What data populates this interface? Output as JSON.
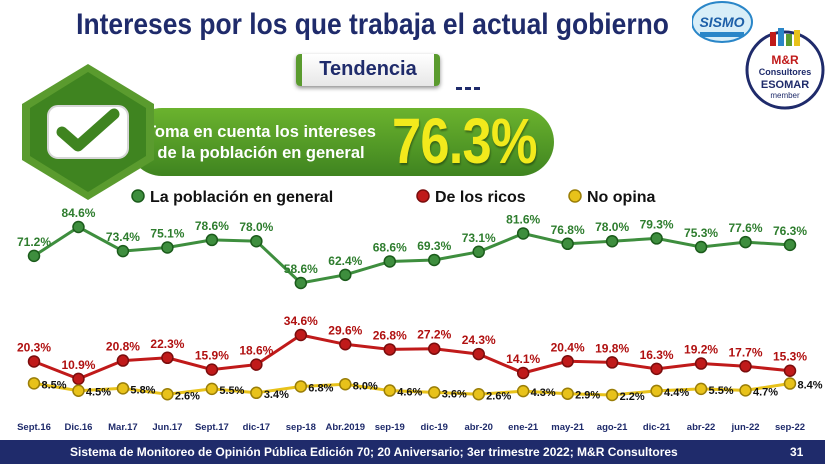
{
  "header": {
    "title": "Intereses por los que trabaja el actual gobierno",
    "subtitle": "Tendencia"
  },
  "highlight": {
    "line1": "Toma en cuenta los intereses",
    "line2": "de la población en general",
    "value": "76.3%"
  },
  "logos": {
    "sismo": "SISMO",
    "company_line1": "M&R",
    "company_line2": "Consultores",
    "esomar": "ESOMAR",
    "member": "member"
  },
  "footer": {
    "text": "Sistema de Monitoreo de Opinión Pública Edición 70; 20 Aniversario; 3er trimestre 2022; M&R Consultores",
    "page": "31"
  },
  "colors": {
    "green": "#3e8e3e",
    "red": "#c01a1a",
    "yellow": "#e8c21a",
    "navy": "#1f2b6b"
  },
  "chart_data": {
    "type": "line",
    "title": "",
    "categories": [
      "Sept.16",
      "Dic.16",
      "Mar.17",
      "Jun.17",
      "Sept.17",
      "dic-17",
      "sep-18",
      "Abr.2019",
      "sep-19",
      "dic-19",
      "abr-20",
      "ene-21",
      "may-21",
      "ago-21",
      "dic-21",
      "abr-22",
      "jun-22",
      "sep-22"
    ],
    "series": [
      {
        "name": "La población en general",
        "values": [
          71.2,
          84.6,
          73.4,
          75.1,
          78.6,
          78.0,
          58.6,
          62.4,
          68.6,
          69.3,
          73.1,
          81.6,
          76.8,
          78.0,
          79.3,
          75.3,
          77.6,
          76.3
        ]
      },
      {
        "name": "De los ricos",
        "values": [
          20.3,
          10.9,
          20.8,
          22.3,
          15.9,
          18.6,
          34.6,
          29.6,
          26.8,
          27.2,
          24.3,
          14.1,
          20.4,
          19.8,
          16.3,
          19.2,
          17.7,
          15.3
        ]
      },
      {
        "name": "No opina",
        "values": [
          8.5,
          4.5,
          5.8,
          2.6,
          5.5,
          3.4,
          6.8,
          8.0,
          4.6,
          3.6,
          2.6,
          4.3,
          2.9,
          2.2,
          4.4,
          5.5,
          4.7,
          8.4
        ]
      }
    ],
    "labels": [
      [
        "71.2%",
        "84.6%",
        "73.4%",
        "75.1%",
        "78.6%",
        "78.0%",
        "58.6%",
        "62.4%",
        "68.6%",
        "69.3%",
        "73.1%",
        "81.6%",
        "76.8%",
        "78.0%",
        "79.3%",
        "75.3%",
        "77.6%",
        "76.3%"
      ],
      [
        "20.3%",
        "10.9%",
        "20.8%",
        "22.3%",
        "15.9%",
        "18.6%",
        "34.6%",
        "29.6%",
        "26.8%",
        "27.2%",
        "24.3%",
        "14.1%",
        "20.4%",
        "19.8%",
        "16.3%",
        "19.2%",
        "17.7%",
        "15.3%"
      ],
      [
        "8.5%",
        "4.5%",
        "5.8%",
        "2.6%",
        "5.5%",
        "3.4%",
        "6.8%",
        "8.0%",
        "4.6%",
        "3.6%",
        "2.6%",
        "4.3%",
        "2.9%",
        "2.2%",
        "4.4%",
        "5.5%",
        "4.7%",
        "8.4%"
      ]
    ],
    "ylim": [
      0,
      90
    ],
    "legend_position": "top"
  }
}
